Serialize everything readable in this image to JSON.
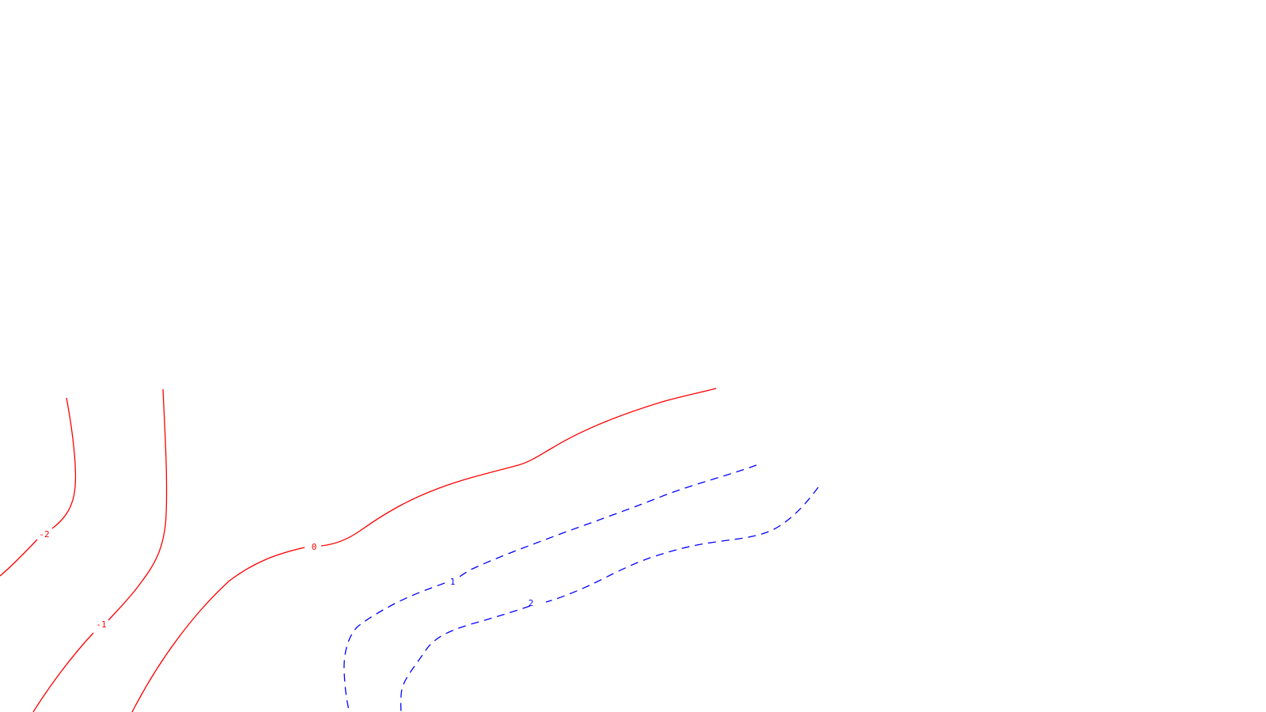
{
  "contours": [
    {
      "id": "contour-minus-2",
      "label": "-2",
      "color": "#ff0000",
      "style": "solid"
    },
    {
      "id": "contour-minus-1",
      "label": "-1",
      "color": "#ff0000",
      "style": "solid"
    },
    {
      "id": "contour-zero",
      "label": "0",
      "color": "#ff0000",
      "style": "solid"
    },
    {
      "id": "contour-plus-1",
      "label": "1",
      "color": "#0000ff",
      "style": "dashed"
    },
    {
      "id": "contour-plus-2",
      "label": "2",
      "color": "#0000ff",
      "style": "dashed"
    }
  ]
}
